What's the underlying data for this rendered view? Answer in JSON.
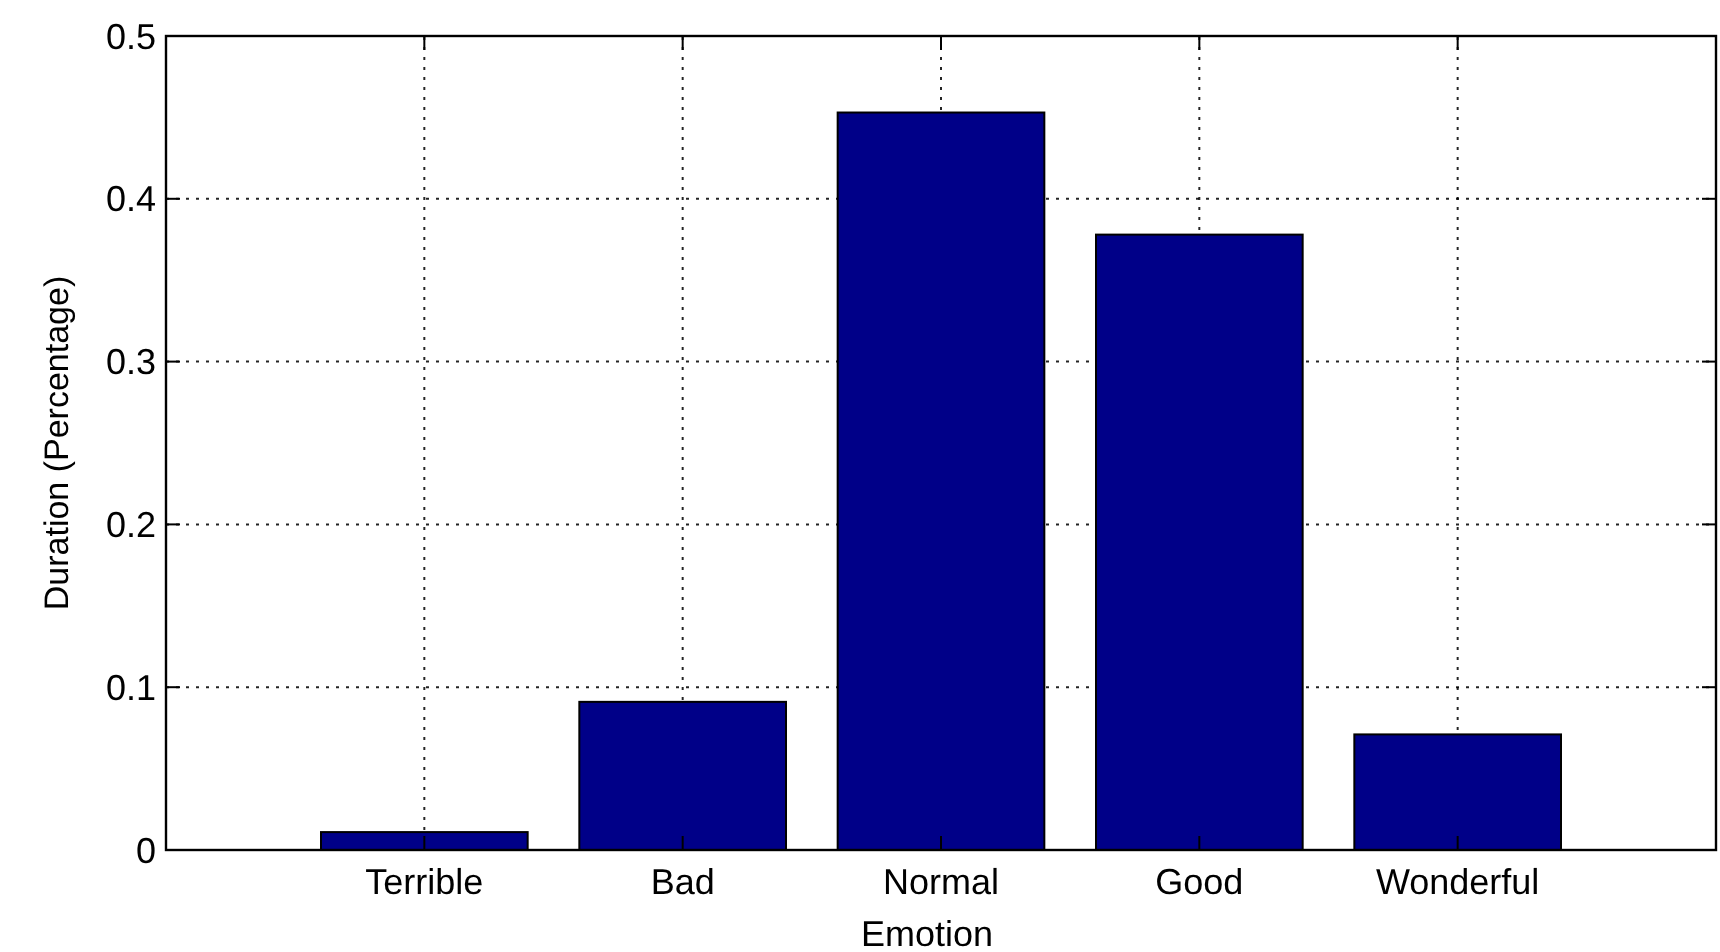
{
  "chart_data": {
    "type": "bar",
    "categories": [
      "Terrible",
      "Bad",
      "Normal",
      "Good",
      "Wonderful"
    ],
    "values": [
      0.011,
      0.091,
      0.453,
      0.378,
      0.071
    ],
    "color": "#000088",
    "ylim": [
      0,
      0.5
    ],
    "yticks": [
      0,
      0.1,
      0.2,
      0.3,
      0.4,
      0.5
    ],
    "xlabel": "Emotion",
    "ylabel": "Duration (Percentage)",
    "grid": true
  }
}
